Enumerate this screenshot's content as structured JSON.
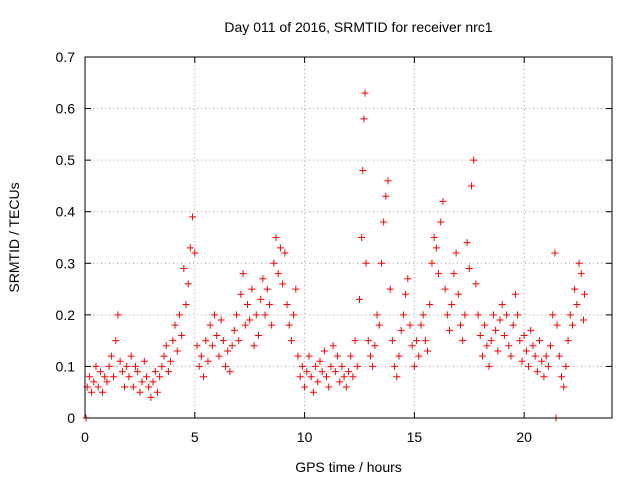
{
  "chart_data": {
    "type": "scatter",
    "title": "Day 011 of 2016, SRMTID for receiver nrc1",
    "xlabel": "GPS time / hours",
    "ylabel": "SRMTID / TECUs",
    "xlim": [
      0,
      24
    ],
    "ylim": [
      0,
      0.7
    ],
    "x_ticks": [
      0,
      5,
      10,
      15,
      20
    ],
    "y_ticks": [
      0,
      0.1,
      0.2,
      0.3,
      0.4,
      0.5,
      0.6,
      0.7
    ],
    "x_tick_labels": [
      "0",
      "5",
      "10",
      "15",
      "20"
    ],
    "y_tick_labels": [
      "0",
      "0.1",
      "0.2",
      "0.3",
      "0.4",
      "0.5",
      "0.6",
      "0.7"
    ],
    "grid": true,
    "marker": "+",
    "color": "#ff0000",
    "series": [
      {
        "name": "SRMTID",
        "points": [
          [
            0.05,
            0.0
          ],
          [
            0.1,
            0.06
          ],
          [
            0.2,
            0.08
          ],
          [
            0.3,
            0.05
          ],
          [
            0.4,
            0.07
          ],
          [
            0.5,
            0.1
          ],
          [
            0.6,
            0.06
          ],
          [
            0.7,
            0.09
          ],
          [
            0.8,
            0.05
          ],
          [
            0.9,
            0.08
          ],
          [
            1.0,
            0.07
          ],
          [
            1.1,
            0.1
          ],
          [
            1.2,
            0.12
          ],
          [
            1.3,
            0.08
          ],
          [
            1.4,
            0.15
          ],
          [
            1.5,
            0.2
          ],
          [
            1.6,
            0.11
          ],
          [
            1.7,
            0.09
          ],
          [
            1.8,
            0.06
          ],
          [
            1.9,
            0.1
          ],
          [
            2.0,
            0.08
          ],
          [
            2.1,
            0.12
          ],
          [
            2.2,
            0.06
          ],
          [
            2.3,
            0.1
          ],
          [
            2.4,
            0.09
          ],
          [
            2.5,
            0.05
          ],
          [
            2.6,
            0.07
          ],
          [
            2.7,
            0.11
          ],
          [
            2.8,
            0.08
          ],
          [
            2.9,
            0.06
          ],
          [
            3.0,
            0.04
          ],
          [
            3.1,
            0.07
          ],
          [
            3.2,
            0.09
          ],
          [
            3.3,
            0.05
          ],
          [
            3.4,
            0.08
          ],
          [
            3.5,
            0.1
          ],
          [
            3.6,
            0.12
          ],
          [
            3.7,
            0.14
          ],
          [
            3.8,
            0.09
          ],
          [
            3.9,
            0.11
          ],
          [
            4.0,
            0.15
          ],
          [
            4.1,
            0.18
          ],
          [
            4.2,
            0.13
          ],
          [
            4.3,
            0.2
          ],
          [
            4.4,
            0.16
          ],
          [
            4.5,
            0.29
          ],
          [
            4.6,
            0.22
          ],
          [
            4.7,
            0.26
          ],
          [
            4.8,
            0.33
          ],
          [
            4.9,
            0.39
          ],
          [
            5.0,
            0.32
          ],
          [
            5.1,
            0.14
          ],
          [
            5.2,
            0.1
          ],
          [
            5.3,
            0.12
          ],
          [
            5.4,
            0.08
          ],
          [
            5.5,
            0.15
          ],
          [
            5.6,
            0.11
          ],
          [
            5.7,
            0.18
          ],
          [
            5.8,
            0.14
          ],
          [
            5.9,
            0.2
          ],
          [
            6.0,
            0.16
          ],
          [
            6.1,
            0.12
          ],
          [
            6.2,
            0.19
          ],
          [
            6.3,
            0.15
          ],
          [
            6.4,
            0.1
          ],
          [
            6.5,
            0.13
          ],
          [
            6.6,
            0.09
          ],
          [
            6.7,
            0.14
          ],
          [
            6.8,
            0.17
          ],
          [
            6.9,
            0.2
          ],
          [
            7.0,
            0.15
          ],
          [
            7.1,
            0.24
          ],
          [
            7.2,
            0.28
          ],
          [
            7.3,
            0.18
          ],
          [
            7.4,
            0.22
          ],
          [
            7.5,
            0.19
          ],
          [
            7.6,
            0.25
          ],
          [
            7.7,
            0.14
          ],
          [
            7.8,
            0.2
          ],
          [
            7.9,
            0.16
          ],
          [
            8.0,
            0.23
          ],
          [
            8.1,
            0.27
          ],
          [
            8.2,
            0.2
          ],
          [
            8.3,
            0.25
          ],
          [
            8.4,
            0.22
          ],
          [
            8.5,
            0.18
          ],
          [
            8.6,
            0.3
          ],
          [
            8.7,
            0.35
          ],
          [
            8.8,
            0.28
          ],
          [
            8.9,
            0.33
          ],
          [
            9.0,
            0.26
          ],
          [
            9.1,
            0.32
          ],
          [
            9.2,
            0.22
          ],
          [
            9.3,
            0.18
          ],
          [
            9.4,
            0.15
          ],
          [
            9.5,
            0.2
          ],
          [
            9.6,
            0.25
          ],
          [
            9.7,
            0.12
          ],
          [
            9.8,
            0.08
          ],
          [
            9.9,
            0.1
          ],
          [
            10.0,
            0.06
          ],
          [
            10.1,
            0.09
          ],
          [
            10.2,
            0.12
          ],
          [
            10.3,
            0.08
          ],
          [
            10.4,
            0.05
          ],
          [
            10.5,
            0.1
          ],
          [
            10.6,
            0.07
          ],
          [
            10.7,
            0.11
          ],
          [
            10.8,
            0.09
          ],
          [
            10.9,
            0.13
          ],
          [
            11.0,
            0.08
          ],
          [
            11.1,
            0.06
          ],
          [
            11.2,
            0.1
          ],
          [
            11.3,
            0.14
          ],
          [
            11.4,
            0.09
          ],
          [
            11.5,
            0.12
          ],
          [
            11.6,
            0.07
          ],
          [
            11.7,
            0.1
          ],
          [
            11.8,
            0.08
          ],
          [
            11.9,
            0.06
          ],
          [
            12.0,
            0.09
          ],
          [
            12.1,
            0.12
          ],
          [
            12.2,
            0.08
          ],
          [
            12.3,
            0.15
          ],
          [
            12.4,
            0.1
          ],
          [
            12.5,
            0.23
          ],
          [
            12.6,
            0.35
          ],
          [
            12.65,
            0.48
          ],
          [
            12.7,
            0.58
          ],
          [
            12.75,
            0.63
          ],
          [
            12.8,
            0.3
          ],
          [
            12.9,
            0.15
          ],
          [
            13.0,
            0.12
          ],
          [
            13.1,
            0.1
          ],
          [
            13.2,
            0.14
          ],
          [
            13.3,
            0.2
          ],
          [
            13.4,
            0.18
          ],
          [
            13.5,
            0.3
          ],
          [
            13.6,
            0.38
          ],
          [
            13.7,
            0.43
          ],
          [
            13.8,
            0.46
          ],
          [
            13.9,
            0.25
          ],
          [
            14.0,
            0.15
          ],
          [
            14.1,
            0.1
          ],
          [
            14.2,
            0.08
          ],
          [
            14.3,
            0.12
          ],
          [
            14.4,
            0.17
          ],
          [
            14.5,
            0.2
          ],
          [
            14.6,
            0.24
          ],
          [
            14.7,
            0.27
          ],
          [
            14.8,
            0.18
          ],
          [
            14.9,
            0.14
          ],
          [
            15.0,
            0.1
          ],
          [
            15.1,
            0.15
          ],
          [
            15.2,
            0.12
          ],
          [
            15.3,
            0.18
          ],
          [
            15.4,
            0.2
          ],
          [
            15.5,
            0.15
          ],
          [
            15.6,
            0.13
          ],
          [
            15.7,
            0.22
          ],
          [
            15.8,
            0.3
          ],
          [
            15.9,
            0.35
          ],
          [
            16.0,
            0.33
          ],
          [
            16.1,
            0.28
          ],
          [
            16.2,
            0.38
          ],
          [
            16.3,
            0.42
          ],
          [
            16.4,
            0.25
          ],
          [
            16.5,
            0.2
          ],
          [
            16.6,
            0.17
          ],
          [
            16.7,
            0.22
          ],
          [
            16.8,
            0.28
          ],
          [
            16.9,
            0.32
          ],
          [
            17.0,
            0.24
          ],
          [
            17.1,
            0.18
          ],
          [
            17.2,
            0.15
          ],
          [
            17.3,
            0.2
          ],
          [
            17.4,
            0.34
          ],
          [
            17.5,
            0.29
          ],
          [
            17.6,
            0.45
          ],
          [
            17.7,
            0.5
          ],
          [
            17.8,
            0.26
          ],
          [
            17.9,
            0.2
          ],
          [
            18.0,
            0.16
          ],
          [
            18.1,
            0.12
          ],
          [
            18.2,
            0.18
          ],
          [
            18.3,
            0.14
          ],
          [
            18.4,
            0.1
          ],
          [
            18.5,
            0.15
          ],
          [
            18.6,
            0.2
          ],
          [
            18.7,
            0.17
          ],
          [
            18.8,
            0.13
          ],
          [
            18.9,
            0.19
          ],
          [
            19.0,
            0.22
          ],
          [
            19.1,
            0.16
          ],
          [
            19.2,
            0.2
          ],
          [
            19.3,
            0.14
          ],
          [
            19.4,
            0.12
          ],
          [
            19.5,
            0.18
          ],
          [
            19.6,
            0.24
          ],
          [
            19.7,
            0.2
          ],
          [
            19.8,
            0.15
          ],
          [
            19.9,
            0.11
          ],
          [
            20.0,
            0.16
          ],
          [
            20.1,
            0.13
          ],
          [
            20.2,
            0.1
          ],
          [
            20.3,
            0.17
          ],
          [
            20.4,
            0.14
          ],
          [
            20.5,
            0.12
          ],
          [
            20.6,
            0.09
          ],
          [
            20.7,
            0.15
          ],
          [
            20.8,
            0.11
          ],
          [
            20.9,
            0.08
          ],
          [
            21.0,
            0.12
          ],
          [
            21.1,
            0.1
          ],
          [
            21.2,
            0.14
          ],
          [
            21.3,
            0.2
          ],
          [
            21.4,
            0.32
          ],
          [
            21.45,
            0.0
          ],
          [
            21.5,
            0.18
          ],
          [
            21.6,
            0.12
          ],
          [
            21.7,
            0.08
          ],
          [
            21.8,
            0.06
          ],
          [
            21.9,
            0.1
          ],
          [
            22.0,
            0.15
          ],
          [
            22.1,
            0.2
          ],
          [
            22.2,
            0.18
          ],
          [
            22.3,
            0.25
          ],
          [
            22.4,
            0.22
          ],
          [
            22.5,
            0.3
          ],
          [
            22.6,
            0.28
          ],
          [
            22.7,
            0.19
          ],
          [
            22.75,
            0.24
          ]
        ]
      }
    ]
  }
}
